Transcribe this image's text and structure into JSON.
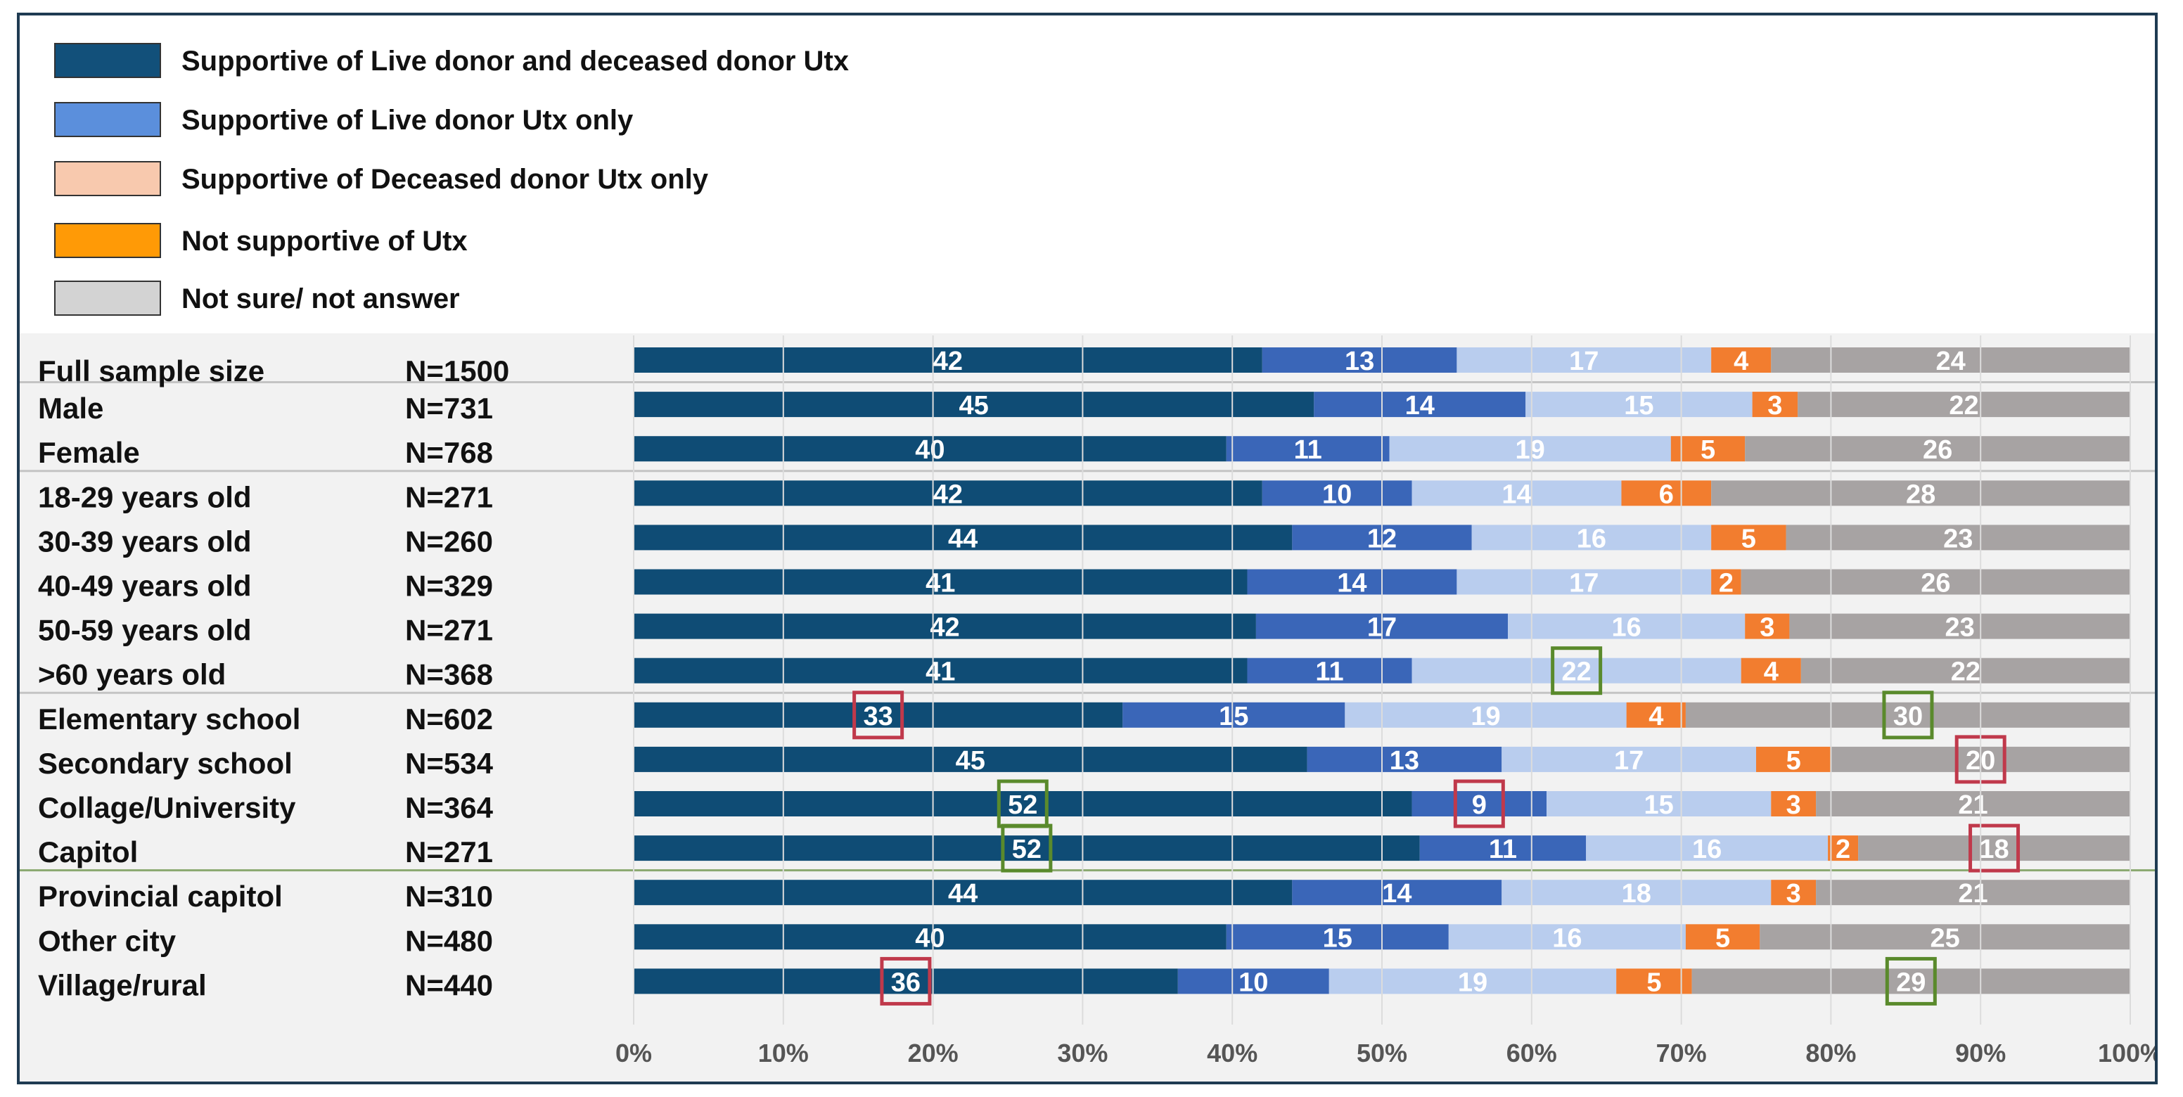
{
  "chart_data": {
    "type": "bar",
    "orientation": "horizontal",
    "stacked": true,
    "percent_stacked": true,
    "legend_position": "top-left",
    "xlim": [
      0,
      100
    ],
    "x_ticks": [
      "0%",
      "10%",
      "20%",
      "30%",
      "40%",
      "50%",
      "60%",
      "70%",
      "80%",
      "90%",
      "100%"
    ],
    "series": [
      {
        "name": "Supportive of Live donor and deceased donor Utx",
        "color": "#12507a",
        "bar_color": "#0f4c75"
      },
      {
        "name": "Supportive of Live donor Utx only",
        "color": "#5b8fdc",
        "bar_color": "#3a66b8"
      },
      {
        "name": "Supportive of Deceased donor Utx only",
        "color": "#f8c9ae",
        "bar_color": "#b9cdee"
      },
      {
        "name": "Not supportive of Utx",
        "color": "#ff9a06",
        "bar_color": "#f27d2f"
      },
      {
        "name": "Not sure/ not answer",
        "color": "#d3d3d3",
        "bar_color": "#a7a3a3"
      }
    ],
    "rows": [
      {
        "label": "Full sample size",
        "n": "N=1500",
        "values": [
          42,
          13,
          17,
          4,
          24
        ]
      },
      {
        "label": "Male",
        "n": "N=731",
        "values": [
          45,
          14,
          15,
          3,
          22
        ]
      },
      {
        "label": "Female",
        "n": "N=768",
        "values": [
          40,
          11,
          19,
          5,
          26
        ]
      },
      {
        "label": "18-29 years old",
        "n": "N=271",
        "values": [
          42,
          10,
          14,
          6,
          28
        ]
      },
      {
        "label": "30-39 years old",
        "n": "N=260",
        "values": [
          44,
          12,
          16,
          5,
          23
        ]
      },
      {
        "label": "40-49 years old",
        "n": "N=329",
        "values": [
          41,
          14,
          17,
          2,
          26
        ]
      },
      {
        "label": "50-59 years old",
        "n": "N=271",
        "values": [
          42,
          17,
          16,
          3,
          23
        ]
      },
      {
        "label": ">60 years old",
        "n": "N=368",
        "values": [
          41,
          11,
          22,
          4,
          22
        ]
      },
      {
        "label": "Elementary school",
        "n": "N=602",
        "values": [
          33,
          15,
          19,
          4,
          30
        ]
      },
      {
        "label": "Secondary school",
        "n": "N=534",
        "values": [
          45,
          13,
          17,
          5,
          20
        ]
      },
      {
        "label": "Collage/University",
        "n": "N=364",
        "values": [
          52,
          9,
          15,
          3,
          21
        ]
      },
      {
        "label": "Capitol",
        "n": "N=271",
        "values": [
          52,
          11,
          16,
          2,
          18
        ]
      },
      {
        "label": "Provincial capitol",
        "n": "N=310",
        "values": [
          44,
          14,
          18,
          3,
          21
        ]
      },
      {
        "label": "Other city",
        "n": "N=480",
        "values": [
          40,
          15,
          16,
          5,
          25
        ]
      },
      {
        "label": "Village/rural",
        "n": "N=440",
        "values": [
          36,
          10,
          19,
          5,
          29
        ]
      }
    ],
    "group_separators_after_row": [
      0,
      2,
      7,
      11
    ],
    "highlights": [
      {
        "row": 7,
        "series": 2,
        "color": "#5a8a2c"
      },
      {
        "row": 8,
        "series": 0,
        "color": "#c0394b"
      },
      {
        "row": 8,
        "series": 4,
        "color": "#5a8a2c"
      },
      {
        "row": 9,
        "series": 4,
        "color": "#c0394b"
      },
      {
        "row": 10,
        "series": 0,
        "color": "#5a8a2c"
      },
      {
        "row": 10,
        "series": 1,
        "color": "#c0394b"
      },
      {
        "row": 11,
        "series": 0,
        "color": "#5a8a2c"
      },
      {
        "row": 11,
        "series": 4,
        "color": "#c0394b"
      },
      {
        "row": 14,
        "series": 0,
        "color": "#c0394b"
      },
      {
        "row": 14,
        "series": 4,
        "color": "#5a8a2c"
      }
    ]
  }
}
